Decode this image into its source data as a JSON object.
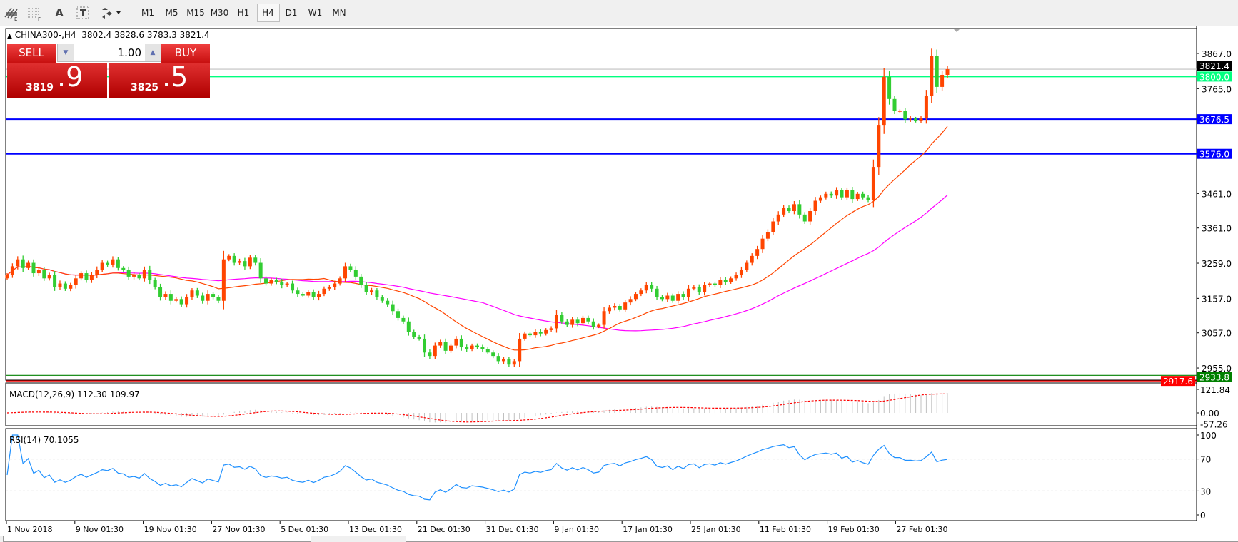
{
  "toolbar": {
    "icons": [
      "fibonacci-fan-icon",
      "fibonacci-retracement-icon",
      "text-icon",
      "text-label-icon",
      "arrows-icon"
    ],
    "text_icon_glyph": "A",
    "timeframes": [
      "M1",
      "M5",
      "M15",
      "M30",
      "H1",
      "H4",
      "D1",
      "W1",
      "MN"
    ],
    "active_timeframe": "H4"
  },
  "header": {
    "symbol_line": "CHINA300-,H4  3802.4 3828.6 3783.3 3821.4"
  },
  "trade_panel": {
    "sell_label": "SELL",
    "buy_label": "BUY",
    "lot": "1.00",
    "sell_price_main": "3819",
    "sell_price_frac": ".9",
    "buy_price_main": "3825",
    "buy_price_frac": ".5"
  },
  "colors": {
    "bull": "#ff4500",
    "bear": "#32cd32",
    "ma_fast": "#ff4500",
    "ma_slow": "#ff00ff",
    "level_green": "#00ff7f",
    "level_blue": "#0000ff",
    "rsi": "#1e90ff",
    "macd_signal": "#ff0000",
    "macd_hist": "#c0c0c0"
  },
  "price_axis": {
    "ticks": [
      "3867.0",
      "3765.0",
      "3461.0",
      "3361.0",
      "3259.0",
      "3157.0",
      "3057.0",
      "2955.0"
    ],
    "tick_values": [
      3867,
      3765,
      3461,
      3361,
      3259,
      3157,
      3057,
      2955
    ],
    "range": [
      2917.6,
      3890
    ]
  },
  "levels": [
    {
      "value": 3821.4,
      "label": "3821.4",
      "kind": "bid"
    },
    {
      "value": 3800.0,
      "label": "3800.0",
      "kind": "green"
    },
    {
      "value": 3676.5,
      "label": "3676.5",
      "kind": "blue"
    },
    {
      "value": 3576.0,
      "label": "3576.0",
      "kind": "blue"
    },
    {
      "value": 2933.8,
      "label": "2933.8",
      "kind": "low-green"
    },
    {
      "value": 2917.6,
      "label": "2917.6",
      "kind": "low-red"
    }
  ],
  "macd": {
    "title": "MACD(12,26,9) 112.30 109.97",
    "ticks": [
      "121.84",
      "0.00",
      "-57.26"
    ],
    "tick_values": [
      121.84,
      0,
      -57.26
    ]
  },
  "rsi": {
    "title": "RSI(14) 70.1055",
    "ticks": [
      "100",
      "70",
      "30",
      "0"
    ],
    "tick_values": [
      100,
      70,
      30,
      0
    ]
  },
  "time_axis": [
    "1 Nov 2018",
    "9 Nov 01:30",
    "19 Nov 01:30",
    "27 Nov 01:30",
    "5 Dec 01:30",
    "13 Dec 01:30",
    "21 Dec 01:30",
    "31 Dec 01:30",
    "9 Jan 01:30",
    "17 Jan 01:30",
    "25 Jan 01:30",
    "11 Feb 01:30",
    "19 Feb 01:30",
    "27 Feb 01:30"
  ],
  "chart_data": {
    "type": "candlestick",
    "symbol": "CHINA300-",
    "timeframe": "H4",
    "last_ohlc": {
      "open": 3802.4,
      "high": 3828.6,
      "low": 3783.3,
      "close": 3821.4
    },
    "closes": [
      3225,
      3250,
      3270,
      3245,
      3260,
      3230,
      3240,
      3215,
      3225,
      3190,
      3200,
      3185,
      3195,
      3215,
      3230,
      3210,
      3225,
      3240,
      3260,
      3255,
      3270,
      3245,
      3240,
      3220,
      3225,
      3215,
      3240,
      3210,
      3190,
      3160,
      3170,
      3150,
      3155,
      3140,
      3160,
      3180,
      3165,
      3150,
      3170,
      3160,
      3150,
      3270,
      3280,
      3260,
      3265,
      3250,
      3275,
      3260,
      3215,
      3200,
      3210,
      3205,
      3195,
      3200,
      3180,
      3170,
      3165,
      3175,
      3160,
      3170,
      3185,
      3190,
      3200,
      3215,
      3250,
      3240,
      3220,
      3195,
      3175,
      3180,
      3160,
      3150,
      3140,
      3120,
      3100,
      3090,
      3060,
      3045,
      3040,
      3000,
      2990,
      3020,
      3030,
      3005,
      3020,
      3040,
      3015,
      3010,
      3020,
      3015,
      3010,
      3000,
      2990,
      2975,
      2980,
      2965,
      2975,
      3040,
      3055,
      3050,
      3060,
      3055,
      3065,
      3070,
      3110,
      3090,
      3080,
      3095,
      3085,
      3100,
      3090,
      3075,
      3080,
      3120,
      3130,
      3135,
      3125,
      3145,
      3155,
      3170,
      3180,
      3195,
      3185,
      3160,
      3155,
      3165,
      3150,
      3170,
      3160,
      3185,
      3190,
      3175,
      3195,
      3200,
      3195,
      3210,
      3205,
      3215,
      3225,
      3240,
      3260,
      3280,
      3300,
      3330,
      3350,
      3380,
      3400,
      3420,
      3410,
      3430,
      3400,
      3380,
      3410,
      3440,
      3450,
      3460,
      3455,
      3470,
      3450,
      3470,
      3445,
      3460,
      3450,
      3443,
      3538,
      3660,
      3799,
      3735,
      3700,
      3700,
      3676,
      3678,
      3672,
      3680,
      3745,
      3860,
      3770,
      3805,
      3821.4
    ]
  }
}
